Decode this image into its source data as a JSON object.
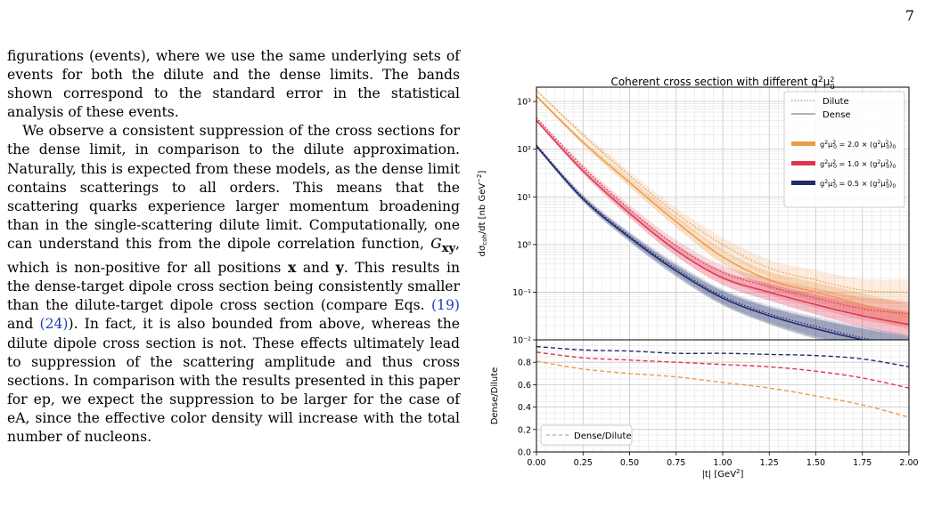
{
  "page_number": "7",
  "body": {
    "p1": "figurations (events), where we use the same underlying sets of events for both the dilute and the dense limits. The bands shown correspond to the standard error in the statistical analysis of these events.",
    "p2a": "We observe a consistent suppression of the cross sections for the dense limit, in comparison to the dilute approximation. Naturally, this is expected from these models, as the dense limit contains scatterings to all orders. This means that the scattering quarks experience larger momentum broadening than in the single-scattering dilute limit. Computationally, one can understand this from the dipole correlation function,",
    "p2_sym": "G",
    "p2_sub": "xy",
    "p2b": ", which is non-positive for all positions",
    "p2_x": "x",
    "p2_and": "and",
    "p2_y": "y",
    "p2c": ". This results in the dense-target dipole cross section being consistently smaller than the dilute-target dipole cross section (compare Eqs.",
    "eq1": "(19)",
    "p2_and2": "and",
    "eq2": "(24)",
    "p2d": "). In fact, it is also bounded from above, whereas the dilute dipole cross section is not. These effects ultimately lead to suppression of the scattering amplitude and thus cross sections. In comparison with the results presented in this paper for ep, we expect the suppression to be larger for the case of eA, since the effective color density will increase with the total number of nucleons."
  },
  "chart_data": {
    "type": "line",
    "title": "Coherent cross section with different g²μ₀²",
    "x": [
      0.0,
      0.25,
      0.5,
      0.75,
      1.0,
      1.25,
      1.5,
      1.75,
      2.0
    ],
    "xlabel": "|t| [GeV²]",
    "xlim": [
      0.0,
      2.0
    ],
    "x_ticks": [
      "0.00",
      "0.25",
      "0.50",
      "0.75",
      "1.00",
      "1.25",
      "1.50",
      "1.75",
      "2.00"
    ],
    "top_panel": {
      "ylabel": "dσcoh/dt [nb GeV⁻²]",
      "yscale": "log",
      "ylim": [
        0.01,
        2000
      ],
      "y_ticks": [
        "10⁻²",
        "10⁻¹",
        "10⁰",
        "10¹",
        "10²",
        "10³"
      ],
      "legend_styles": [
        "Dilute",
        "Dense"
      ],
      "legend_placement": "top-right",
      "series": [
        {
          "name": "g²μ₀² = 2.0 × (g²μ₀²)₀",
          "color": "#ef9a48",
          "dense": [
            1300,
            140,
            20,
            3.0,
            0.55,
            0.18,
            0.1,
            0.055,
            0.03
          ],
          "dilute": [
            1700,
            200,
            28,
            4.5,
            1.0,
            0.32,
            0.18,
            0.11,
            0.1
          ]
        },
        {
          "name": "g²μ₀² = 1.0 × (g²μ₀²)₀",
          "color": "#e0334f",
          "dense": [
            400,
            35,
            4.5,
            0.75,
            0.2,
            0.1,
            0.055,
            0.032,
            0.021
          ],
          "dilute": [
            450,
            42,
            5.5,
            0.95,
            0.26,
            0.13,
            0.075,
            0.045,
            0.035
          ]
        },
        {
          "name": "g²μ₀² = 0.5 × (g²μ₀²)₀",
          "color": "#1f2a6b",
          "dense": [
            115,
            9.0,
            1.4,
            0.28,
            0.075,
            0.032,
            0.017,
            0.01,
            0.0062
          ],
          "dilute": [
            122,
            9.8,
            1.5,
            0.31,
            0.082,
            0.035,
            0.019,
            0.011,
            0.0068
          ]
        }
      ]
    },
    "bottom_panel": {
      "ylabel": "Dense/Dilute",
      "ylim": [
        0.0,
        1.0
      ],
      "y_ticks": [
        "0.0",
        "0.2",
        "0.4",
        "0.6",
        "0.8"
      ],
      "legend": "Dense/Dilute",
      "legend_placement": "bottom-left",
      "series": [
        {
          "color": "#ef9a48",
          "values": [
            0.81,
            0.74,
            0.7,
            0.67,
            0.62,
            0.57,
            0.5,
            0.42,
            0.31
          ]
        },
        {
          "color": "#e0334f",
          "values": [
            0.89,
            0.84,
            0.82,
            0.8,
            0.78,
            0.76,
            0.72,
            0.66,
            0.57
          ]
        },
        {
          "color": "#1f2a6b",
          "values": [
            0.94,
            0.91,
            0.9,
            0.88,
            0.88,
            0.87,
            0.86,
            0.83,
            0.76
          ]
        }
      ]
    }
  }
}
